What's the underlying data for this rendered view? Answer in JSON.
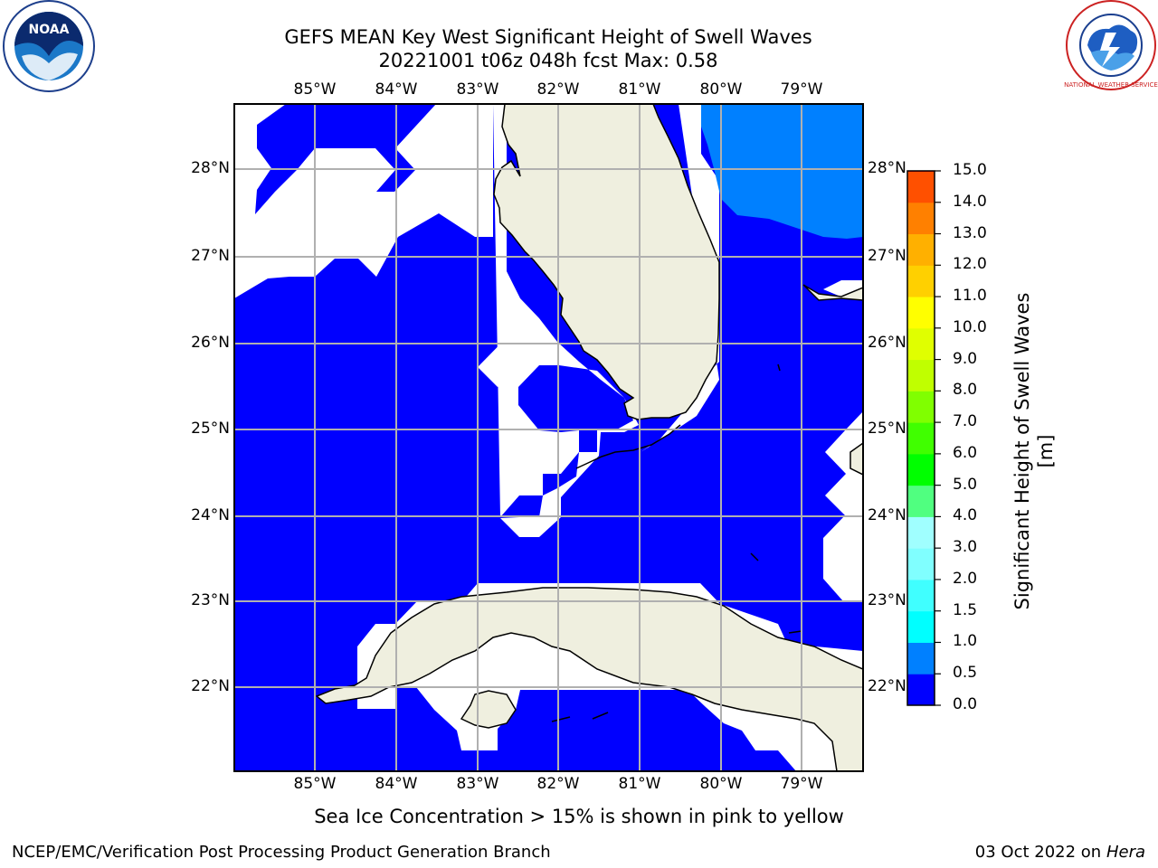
{
  "title": {
    "line1": "GEFS MEAN Key West Significant Height of Swell Waves",
    "line2": "20221001 t06z 048h fcst   Max: 0.58"
  },
  "map": {
    "lon_labels": [
      "85°W",
      "84°W",
      "83°W",
      "82°W",
      "81°W",
      "80°W",
      "79°W"
    ],
    "lat_labels": [
      "28°N",
      "27°N",
      "26°N",
      "25°N",
      "24°N",
      "23°N",
      "22°N"
    ],
    "ocean_color": "#0000ff",
    "swell_0_5_color": "#0080ff",
    "land_color": "#efefdf",
    "grid_color": "#b0b0b0"
  },
  "colorbar": {
    "label": "Significant Height of Swell Waves [m]",
    "ticks": [
      "0.0",
      "0.5",
      "1.0",
      "1.5",
      "2.0",
      "3.0",
      "4.0",
      "5.0",
      "6.0",
      "7.0",
      "8.0",
      "9.0",
      "10.0",
      "11.0",
      "12.0",
      "13.0",
      "14.0",
      "15.0"
    ],
    "colors": [
      "#0000ff",
      "#0080ff",
      "#00ffff",
      "#40ffff",
      "#80ffff",
      "#a0ffff",
      "#50ff80",
      "#00ff00",
      "#40ff00",
      "#80ff00",
      "#c0ff00",
      "#e0ff00",
      "#ffff00",
      "#ffd000",
      "#ffb000",
      "#ff8000",
      "#ff5000",
      "#ff2000",
      "#ff0000"
    ]
  },
  "note": "Sea Ice Concentration > 15% is shown in pink to yellow",
  "footer": {
    "left": "NCEP/EMC/Verification Post Processing Product Generation Branch",
    "right_date": "03 Oct 2022 on ",
    "right_host": "Hera"
  },
  "logos": {
    "noaa_text": "NOAA",
    "nws_text": "NATIONAL WEATHER SERVICE"
  }
}
